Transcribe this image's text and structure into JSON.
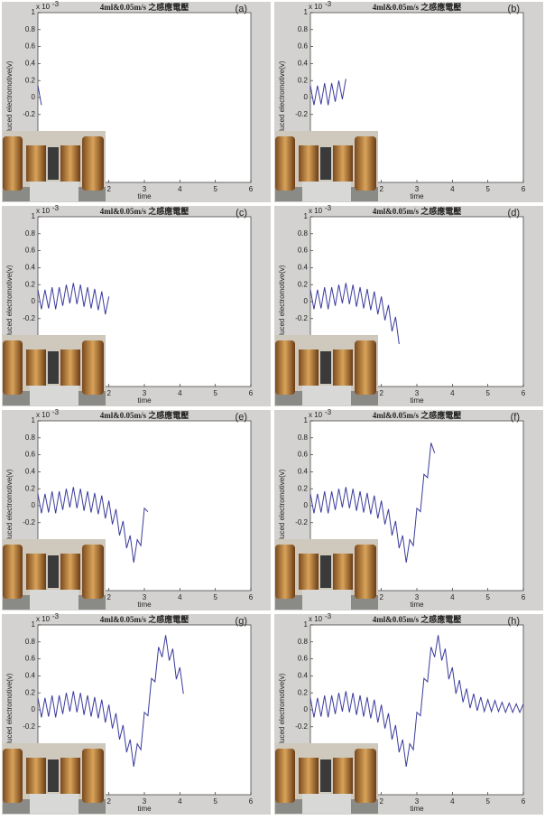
{
  "chart_data": [
    {
      "type": "line",
      "title": "4ml&0.05m/s 之感應電壓",
      "panel_label": "(a)",
      "x_label": "time",
      "y_label": "duced electromotive(v)",
      "y_exponent_base": "x 10",
      "y_exponent_power": "-3",
      "color": "#3b3b9c",
      "x": [
        0,
        0.1
      ],
      "values": [
        0.14,
        -0.09
      ],
      "xlim": [
        0,
        6
      ],
      "ylim": [
        -1,
        1
      ],
      "xticks": [
        2,
        3,
        4,
        5,
        6
      ],
      "yticks": [
        -0.2,
        0,
        0.2,
        0.4,
        0.6,
        0.8,
        1
      ]
    },
    {
      "type": "line",
      "title": "4ml&0.05m/s 之感應電壓",
      "panel_label": "(b)",
      "x_label": "time",
      "y_label": "duced electromotive(v)",
      "y_exponent_base": "x 10",
      "y_exponent_power": "-3",
      "color": "#3b3b9c",
      "x": [
        0,
        0.1,
        0.2,
        0.3,
        0.4,
        0.5,
        0.6,
        0.7,
        0.8,
        0.9,
        1.0
      ],
      "values": [
        0.14,
        -0.09,
        0.14,
        -0.08,
        0.17,
        -0.09,
        0.17,
        -0.05,
        0.2,
        -0.02,
        0.22
      ],
      "xlim": [
        0,
        6
      ],
      "ylim": [
        -1,
        1
      ],
      "xticks": [
        2,
        3,
        4,
        5,
        6
      ],
      "yticks": [
        -0.2,
        0,
        0.2,
        0.4,
        0.6,
        0.8,
        1
      ]
    },
    {
      "type": "line",
      "title": "4ml&0.05m/s 之感應電壓",
      "panel_label": "(c)",
      "x_label": "time",
      "y_label": "duced electromotive(v)",
      "y_exponent_base": "x 10",
      "y_exponent_power": "-3",
      "color": "#3b3b9c",
      "x": [
        0,
        0.1,
        0.2,
        0.3,
        0.4,
        0.5,
        0.6,
        0.7,
        0.8,
        0.9,
        1.0,
        1.1,
        1.2,
        1.3,
        1.4,
        1.5,
        1.6,
        1.7,
        1.8,
        1.9,
        2.0
      ],
      "values": [
        0.14,
        -0.09,
        0.14,
        -0.08,
        0.17,
        -0.09,
        0.17,
        -0.05,
        0.2,
        -0.02,
        0.22,
        -0.03,
        0.2,
        -0.06,
        0.17,
        -0.08,
        0.15,
        -0.1,
        0.12,
        -0.15,
        0.06
      ],
      "xlim": [
        0,
        6
      ],
      "ylim": [
        -1,
        1
      ],
      "xticks": [
        2,
        3,
        4,
        5,
        6
      ],
      "yticks": [
        -0.2,
        0,
        0.2,
        0.4,
        0.6,
        0.8,
        1
      ]
    },
    {
      "type": "line",
      "title": "4ml&0.05m/s 之感應電壓",
      "panel_label": "(d)",
      "x_label": "time",
      "y_label": "duced electromotive(v)",
      "y_exponent_base": "x 10",
      "y_exponent_power": "-3",
      "color": "#3b3b9c",
      "x": [
        0,
        0.1,
        0.2,
        0.3,
        0.4,
        0.5,
        0.6,
        0.7,
        0.8,
        0.9,
        1.0,
        1.1,
        1.2,
        1.3,
        1.4,
        1.5,
        1.6,
        1.7,
        1.8,
        1.9,
        2.0,
        2.1,
        2.2,
        2.3,
        2.4,
        2.5
      ],
      "values": [
        0.14,
        -0.09,
        0.14,
        -0.08,
        0.17,
        -0.09,
        0.17,
        -0.05,
        0.2,
        -0.02,
        0.22,
        -0.03,
        0.2,
        -0.06,
        0.17,
        -0.08,
        0.15,
        -0.1,
        0.12,
        -0.15,
        0.06,
        -0.22,
        -0.04,
        -0.35,
        -0.18,
        -0.5
      ],
      "xlim": [
        0,
        6
      ],
      "ylim": [
        -1,
        1
      ],
      "xticks": [
        2,
        3,
        4,
        5,
        6
      ],
      "yticks": [
        -0.2,
        0,
        0.2,
        0.4,
        0.6,
        0.8,
        1
      ]
    },
    {
      "type": "line",
      "title": "4ml&0.05m/s 之感應電壓",
      "panel_label": "(e)",
      "x_label": "time",
      "y_label": "duced electromotive(v)",
      "y_exponent_base": "x 10",
      "y_exponent_power": "-3",
      "color": "#3b3b9c",
      "x": [
        0,
        0.1,
        0.2,
        0.3,
        0.4,
        0.5,
        0.6,
        0.7,
        0.8,
        0.9,
        1.0,
        1.1,
        1.2,
        1.3,
        1.4,
        1.5,
        1.6,
        1.7,
        1.8,
        1.9,
        2.0,
        2.1,
        2.2,
        2.3,
        2.4,
        2.5,
        2.6,
        2.7,
        2.8,
        2.9,
        3.0,
        3.1
      ],
      "values": [
        0.14,
        -0.09,
        0.14,
        -0.08,
        0.17,
        -0.09,
        0.17,
        -0.05,
        0.2,
        -0.02,
        0.22,
        -0.03,
        0.2,
        -0.06,
        0.17,
        -0.08,
        0.15,
        -0.1,
        0.12,
        -0.15,
        0.06,
        -0.22,
        -0.04,
        -0.35,
        -0.18,
        -0.5,
        -0.35,
        -0.67,
        -0.4,
        -0.47,
        -0.03,
        -0.07
      ],
      "xlim": [
        0,
        6
      ],
      "ylim": [
        -1,
        1
      ],
      "xticks": [
        2,
        3,
        4,
        5,
        6
      ],
      "yticks": [
        -0.2,
        0,
        0.2,
        0.4,
        0.6,
        0.8,
        1
      ]
    },
    {
      "type": "line",
      "title": "4ml&0.05m/s 之感應電壓",
      "panel_label": "(f)",
      "x_label": "time",
      "y_label": "duced electromotive(v)",
      "y_exponent_base": "x 10",
      "y_exponent_power": "-3",
      "color": "#3b3b9c",
      "x": [
        0,
        0.1,
        0.2,
        0.3,
        0.4,
        0.5,
        0.6,
        0.7,
        0.8,
        0.9,
        1.0,
        1.1,
        1.2,
        1.3,
        1.4,
        1.5,
        1.6,
        1.7,
        1.8,
        1.9,
        2.0,
        2.1,
        2.2,
        2.3,
        2.4,
        2.5,
        2.6,
        2.7,
        2.8,
        2.9,
        3.0,
        3.1,
        3.2,
        3.3,
        3.4,
        3.5
      ],
      "values": [
        0.14,
        -0.09,
        0.14,
        -0.08,
        0.17,
        -0.09,
        0.17,
        -0.05,
        0.2,
        -0.02,
        0.22,
        -0.03,
        0.2,
        -0.06,
        0.17,
        -0.08,
        0.15,
        -0.1,
        0.12,
        -0.15,
        0.06,
        -0.22,
        -0.04,
        -0.35,
        -0.18,
        -0.5,
        -0.35,
        -0.67,
        -0.4,
        -0.47,
        -0.03,
        -0.07,
        0.37,
        0.33,
        0.74,
        0.62
      ],
      "xlim": [
        0,
        6
      ],
      "ylim": [
        -1,
        1
      ],
      "xticks": [
        2,
        3,
        4,
        5,
        6
      ],
      "yticks": [
        -0.2,
        0,
        0.2,
        0.4,
        0.6,
        0.8,
        1
      ]
    },
    {
      "type": "line",
      "title": "4ml&0.05m/s 之感應電壓",
      "panel_label": "(g)",
      "x_label": "time",
      "y_label": "duced electromotive(v)",
      "y_exponent_base": "x 10",
      "y_exponent_power": "-3",
      "color": "#3b3b9c",
      "x": [
        0,
        0.1,
        0.2,
        0.3,
        0.4,
        0.5,
        0.6,
        0.7,
        0.8,
        0.9,
        1.0,
        1.1,
        1.2,
        1.3,
        1.4,
        1.5,
        1.6,
        1.7,
        1.8,
        1.9,
        2.0,
        2.1,
        2.2,
        2.3,
        2.4,
        2.5,
        2.6,
        2.7,
        2.8,
        2.9,
        3.0,
        3.1,
        3.2,
        3.3,
        3.4,
        3.5,
        3.6,
        3.7,
        3.8,
        3.9,
        4.0,
        4.1
      ],
      "values": [
        0.14,
        -0.09,
        0.14,
        -0.08,
        0.17,
        -0.09,
        0.17,
        -0.05,
        0.2,
        -0.02,
        0.22,
        -0.03,
        0.2,
        -0.06,
        0.17,
        -0.08,
        0.15,
        -0.1,
        0.12,
        -0.15,
        0.06,
        -0.22,
        -0.04,
        -0.35,
        -0.18,
        -0.5,
        -0.35,
        -0.67,
        -0.4,
        -0.47,
        -0.03,
        -0.07,
        0.37,
        0.33,
        0.74,
        0.62,
        0.88,
        0.58,
        0.72,
        0.36,
        0.5,
        0.19
      ],
      "xlim": [
        0,
        6
      ],
      "ylim": [
        -1,
        1
      ],
      "xticks": [
        2,
        3,
        4,
        5,
        6
      ],
      "yticks": [
        -0.2,
        0,
        0.2,
        0.4,
        0.6,
        0.8,
        1
      ]
    },
    {
      "type": "line",
      "title": "4ml&0.05m/s 之感應電壓",
      "panel_label": "(h)",
      "x_label": "time",
      "y_label": "duced electromotive(v)",
      "y_exponent_base": "x 10",
      "y_exponent_power": "-3",
      "color": "#3b3b9c",
      "x": [
        0,
        0.1,
        0.2,
        0.3,
        0.4,
        0.5,
        0.6,
        0.7,
        0.8,
        0.9,
        1.0,
        1.1,
        1.2,
        1.3,
        1.4,
        1.5,
        1.6,
        1.7,
        1.8,
        1.9,
        2.0,
        2.1,
        2.2,
        2.3,
        2.4,
        2.5,
        2.6,
        2.7,
        2.8,
        2.9,
        3.0,
        3.1,
        3.2,
        3.3,
        3.4,
        3.5,
        3.6,
        3.7,
        3.8,
        3.9,
        4.0,
        4.1,
        4.2,
        4.3,
        4.4,
        4.5,
        4.6,
        4.7,
        4.8,
        4.9,
        5.0,
        5.1,
        5.2,
        5.3,
        5.4,
        5.5,
        5.6,
        5.7,
        5.8,
        5.9,
        6.0
      ],
      "values": [
        0.14,
        -0.09,
        0.14,
        -0.08,
        0.17,
        -0.09,
        0.17,
        -0.05,
        0.2,
        -0.02,
        0.22,
        -0.03,
        0.2,
        -0.06,
        0.17,
        -0.08,
        0.15,
        -0.1,
        0.12,
        -0.15,
        0.06,
        -0.22,
        -0.04,
        -0.35,
        -0.18,
        -0.5,
        -0.35,
        -0.67,
        -0.4,
        -0.47,
        -0.03,
        -0.07,
        0.37,
        0.33,
        0.74,
        0.62,
        0.88,
        0.58,
        0.72,
        0.36,
        0.5,
        0.19,
        0.35,
        0.09,
        0.25,
        0.02,
        0.19,
        -0.01,
        0.15,
        -0.02,
        0.12,
        -0.02,
        0.11,
        -0.02,
        0.09,
        -0.03,
        0.08,
        -0.03,
        0.07,
        -0.03,
        0.07
      ],
      "xlim": [
        0,
        6
      ],
      "ylim": [
        -1,
        1
      ],
      "xticks": [
        2,
        3,
        4,
        5,
        6
      ],
      "yticks": [
        -0.2,
        0,
        0.2,
        0.4,
        0.6,
        0.8,
        1
      ]
    }
  ]
}
